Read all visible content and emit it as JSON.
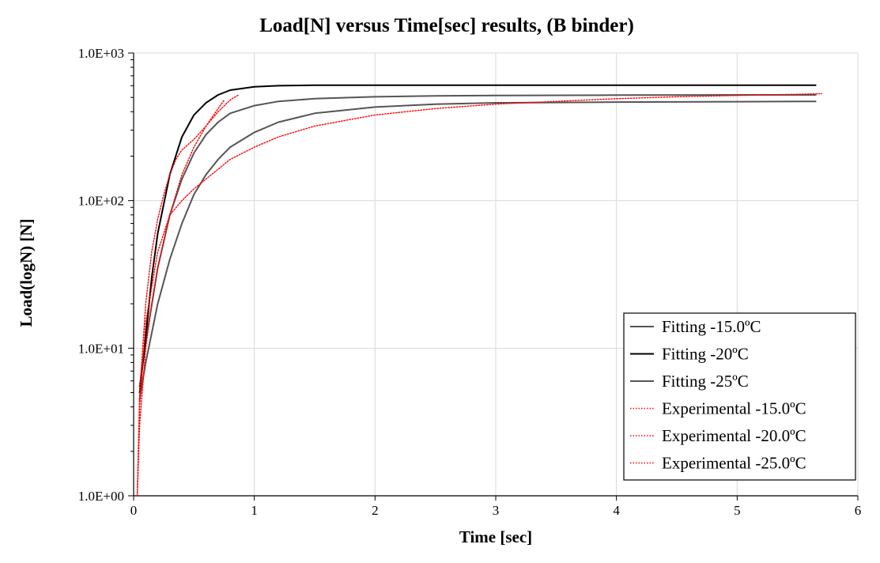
{
  "chart_data": {
    "type": "line",
    "title": "Load[N] versus Time[sec] results, (B binder)",
    "xlabel": "Time [sec]",
    "ylabel": "Load(logN) [N]",
    "xlim": [
      0,
      6
    ],
    "ylim": [
      1,
      1000
    ],
    "yscale": "log",
    "grid": true,
    "x_ticks": [
      0,
      1,
      2,
      3,
      4,
      5,
      6
    ],
    "x_tick_labels": [
      "0",
      "1",
      "2",
      "3",
      "4",
      "5",
      "6"
    ],
    "y_ticks": [
      1,
      10,
      100,
      1000
    ],
    "y_tick_labels": [
      "1.0E+00",
      "1.0E+01",
      "1.0E+02",
      "1.0E+03"
    ],
    "legend_position": "bottom-right",
    "series": [
      {
        "name": "Fitting -15.0ºC",
        "style": "solid",
        "color": "#555555",
        "x": [
          0.05,
          0.1,
          0.2,
          0.3,
          0.4,
          0.5,
          0.6,
          0.7,
          0.8,
          1.0,
          1.2,
          1.5,
          2.0,
          2.5,
          3.0,
          4.0,
          5.0,
          5.65
        ],
        "y": [
          5.5,
          11,
          35,
          80,
          140,
          210,
          280,
          340,
          390,
          440,
          470,
          490,
          505,
          512,
          515,
          518,
          520,
          520
        ]
      },
      {
        "name": "Fitting -20ºC",
        "style": "solid",
        "color": "#000000",
        "x": [
          0.05,
          0.1,
          0.15,
          0.2,
          0.3,
          0.4,
          0.5,
          0.6,
          0.7,
          0.8,
          1.0,
          1.2,
          1.5,
          2.0,
          3.0,
          4.0,
          5.0,
          5.65
        ],
        "y": [
          5,
          12,
          30,
          60,
          150,
          270,
          380,
          460,
          520,
          560,
          590,
          600,
          605,
          605,
          605,
          605,
          605,
          605
        ]
      },
      {
        "name": "Fitting -25ºC",
        "style": "solid",
        "color": "#555555",
        "x": [
          0.05,
          0.1,
          0.2,
          0.3,
          0.4,
          0.5,
          0.6,
          0.7,
          0.8,
          1.0,
          1.2,
          1.5,
          2.0,
          2.5,
          3.0,
          4.0,
          5.0,
          5.65
        ],
        "y": [
          4.5,
          8,
          20,
          40,
          70,
          110,
          150,
          190,
          230,
          290,
          340,
          390,
          430,
          450,
          460,
          465,
          468,
          470
        ]
      },
      {
        "name": "Experimental -15.0ºC",
        "style": "dotted",
        "color": "#ff0000",
        "x": [
          0.03,
          0.05,
          0.1,
          0.15,
          0.2,
          0.25,
          0.3,
          0.35,
          0.4,
          0.5,
          0.6,
          0.7,
          0.8,
          0.87
        ],
        "y": [
          1,
          5,
          20,
          45,
          75,
          110,
          150,
          190,
          220,
          260,
          320,
          400,
          480,
          520
        ]
      },
      {
        "name": "Experimental -20.0ºC",
        "style": "dotted",
        "color": "#ff0000",
        "x": [
          0.03,
          0.05,
          0.1,
          0.15,
          0.2,
          0.3,
          0.4,
          0.5,
          0.6,
          0.7,
          0.75
        ],
        "y": [
          1,
          3,
          10,
          20,
          35,
          80,
          150,
          230,
          320,
          420,
          480
        ]
      },
      {
        "name": "Experimental -25.0ºC",
        "style": "dotted",
        "color": "#ff0000",
        "x": [
          0.03,
          0.05,
          0.1,
          0.2,
          0.3,
          0.4,
          0.5,
          0.6,
          0.8,
          1.0,
          1.2,
          1.5,
          2.0,
          2.5,
          3.0,
          3.5,
          4.0,
          4.5,
          5.0,
          5.5,
          5.7
        ],
        "y": [
          1,
          4,
          15,
          45,
          80,
          100,
          120,
          140,
          190,
          230,
          270,
          320,
          380,
          420,
          450,
          470,
          490,
          505,
          515,
          525,
          530
        ]
      }
    ]
  }
}
